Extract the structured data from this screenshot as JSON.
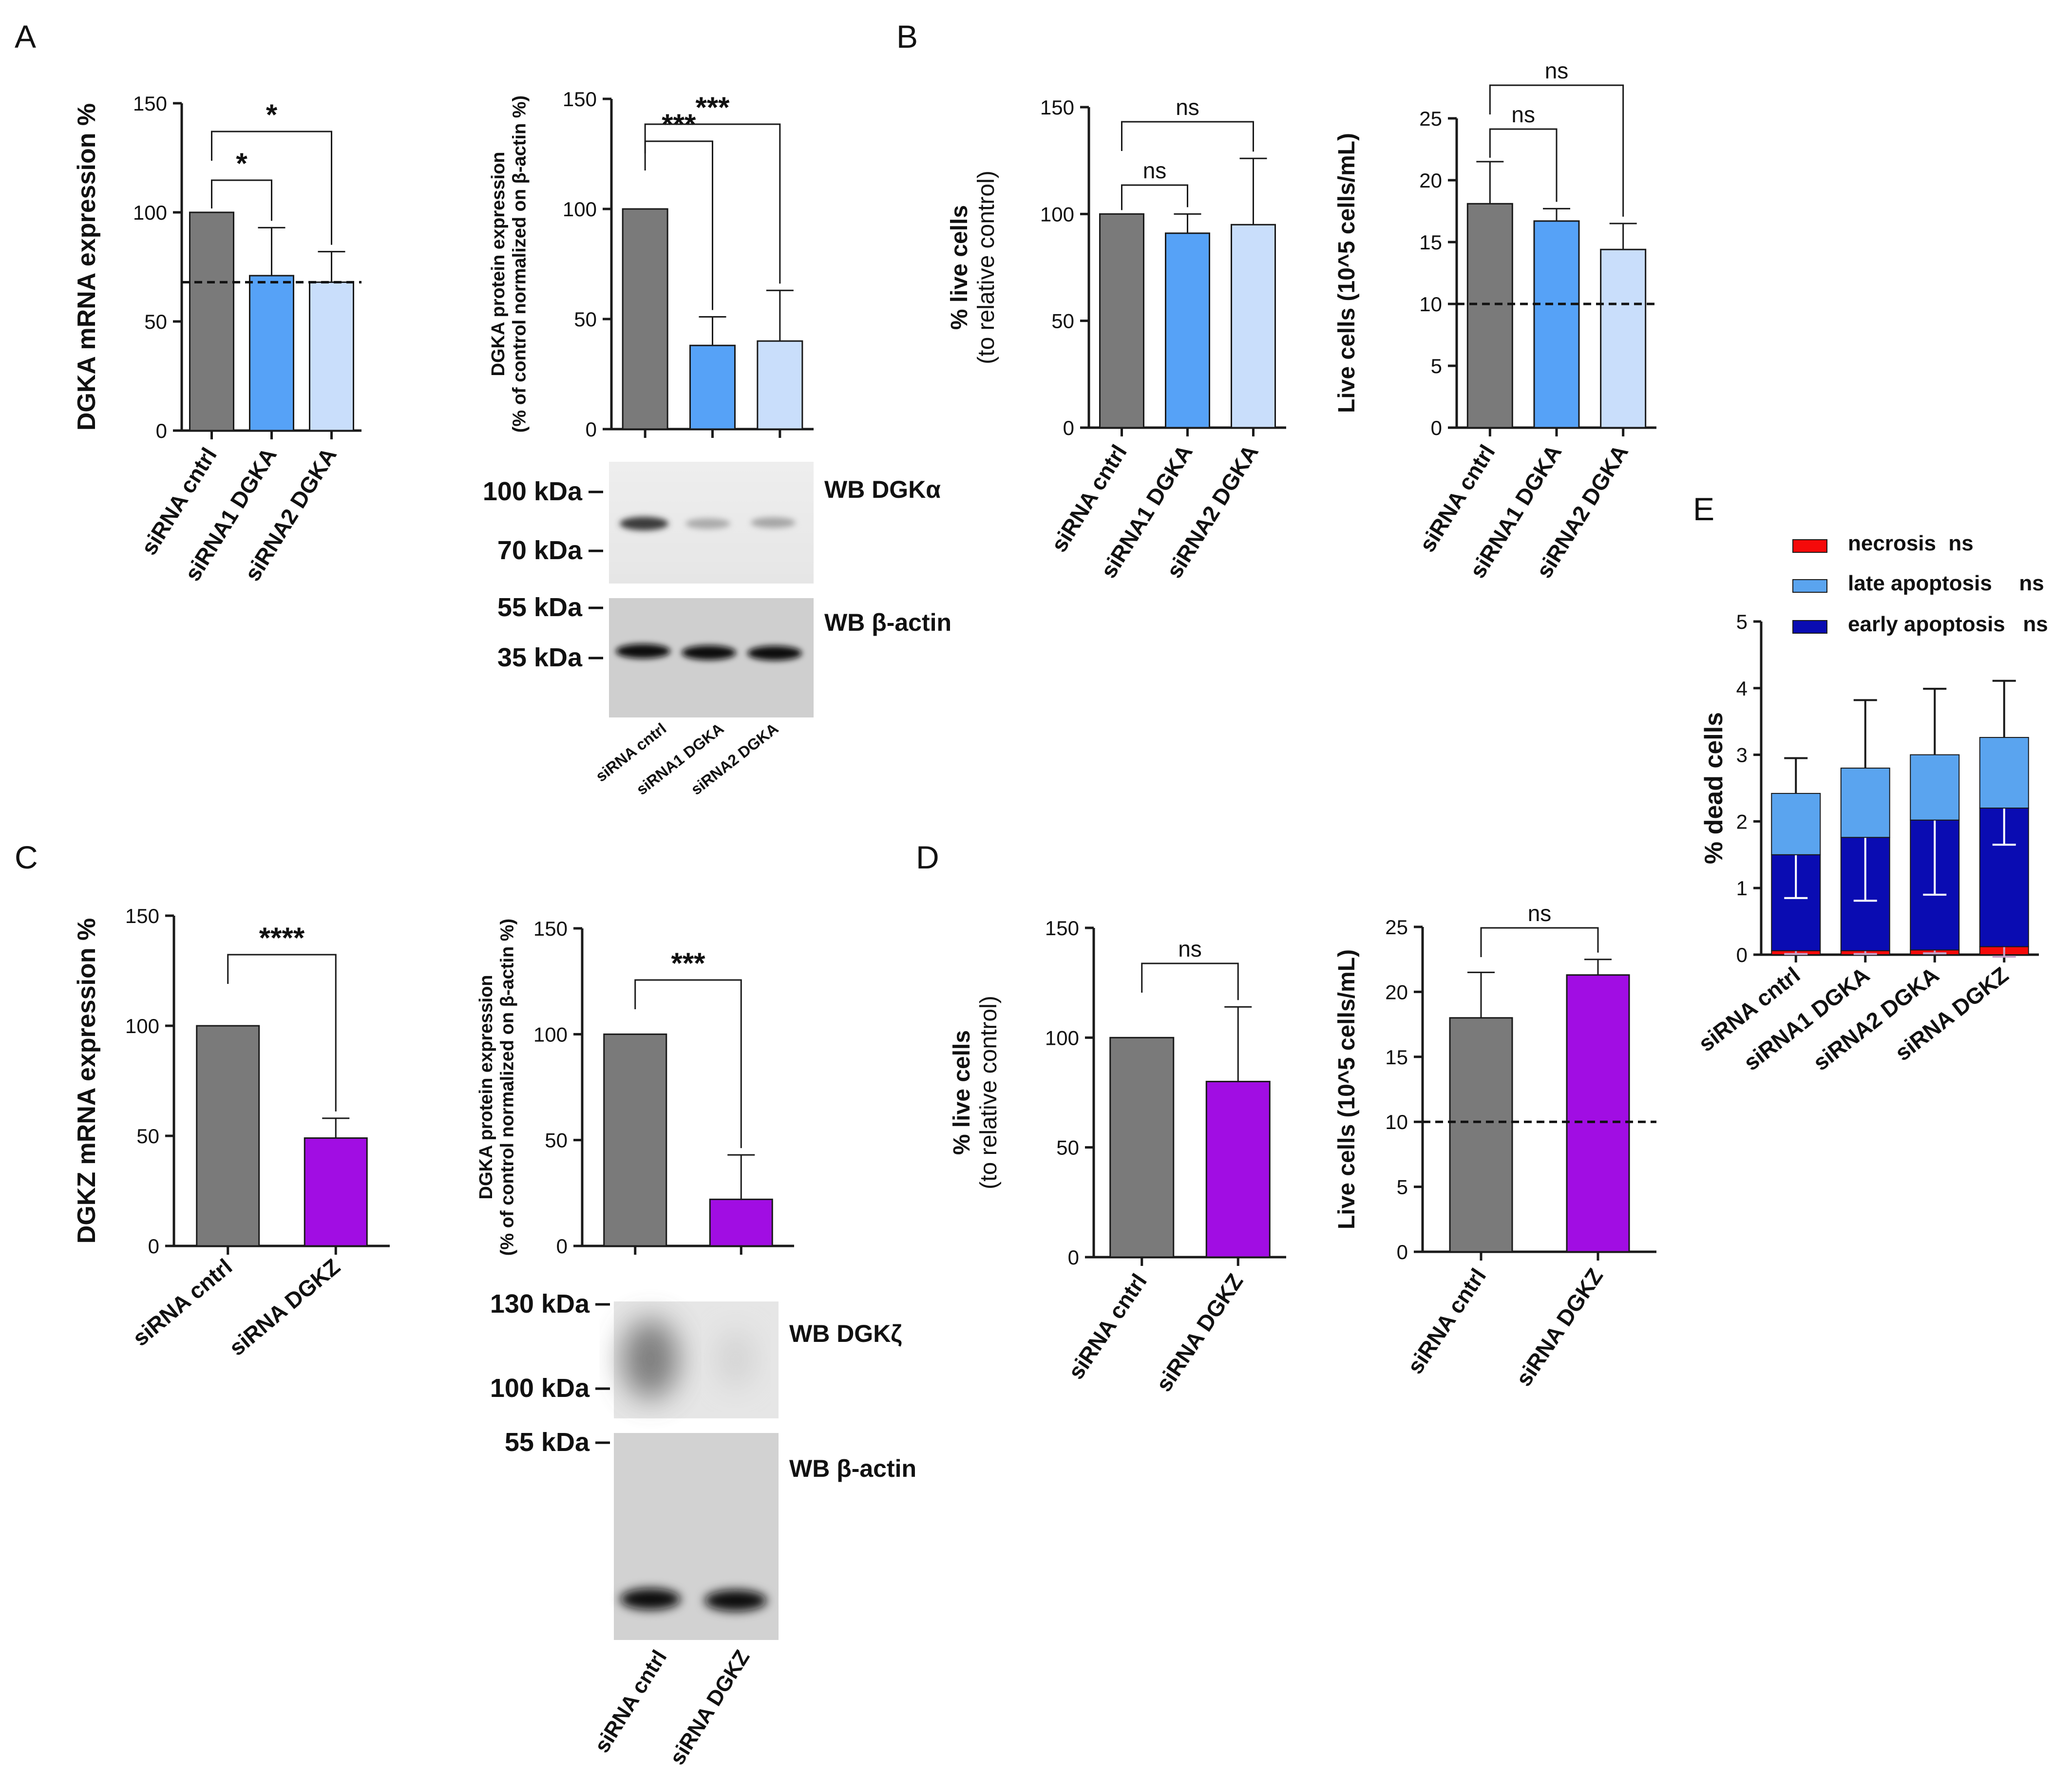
{
  "colors": {
    "gray": "#7a7a7a",
    "blue": "#56a2f7",
    "light_blue": "#c9defb",
    "purple": "#a10de3",
    "navy": "#0a0cb2",
    "sky": "#5aa4ef",
    "red": "#f50a0a",
    "axis": "#1a1a1a",
    "white": "#ffffff"
  },
  "panel_labels": [
    "A",
    "B",
    "C",
    "D",
    "E"
  ],
  "chart_data": [
    {
      "id": "A1",
      "type": "bar",
      "ylabel": "DGKA mRNA expression %",
      "categories": [
        "siRNA cntrl",
        "siRNA1 DGKA",
        "siRNA2 DGKA"
      ],
      "values": [
        100,
        71,
        68
      ],
      "errors": [
        0,
        22,
        14
      ],
      "colors": [
        "#7a7a7a",
        "#56a2f7",
        "#c9defb"
      ],
      "ylim": [
        0,
        150
      ],
      "yticks": [
        0,
        50,
        100,
        150
      ],
      "ref_line": 68,
      "sig": [
        {
          "from": 0,
          "to": 1,
          "label": "*"
        },
        {
          "from": 0,
          "to": 2,
          "label": "*"
        }
      ]
    },
    {
      "id": "A2",
      "type": "bar",
      "ylabel": [
        "DGKA protein expression",
        "(% of control normalized on β-actin %)"
      ],
      "categories": [
        "siRNA cntrl",
        "siRNA1 DGKA",
        "siRNA2 DGKA"
      ],
      "values": [
        100,
        38,
        40
      ],
      "errors": [
        0,
        13,
        23
      ],
      "colors": [
        "#7a7a7a",
        "#56a2f7",
        "#c9defb"
      ],
      "ylim": [
        0,
        150
      ],
      "yticks": [
        0,
        50,
        100,
        150
      ],
      "sig": [
        {
          "from": 0,
          "to": 1,
          "label": "***"
        },
        {
          "from": 0,
          "to": 2,
          "label": "***"
        }
      ]
    },
    {
      "id": "B1",
      "type": "bar",
      "ylabel": [
        "% live cells",
        "(to relative control)"
      ],
      "categories": [
        "siRNA cntrl",
        "siRNA1 DGKA",
        "siRNA2 DGKA"
      ],
      "values": [
        100,
        91,
        95
      ],
      "errors": [
        0,
        9,
        31
      ],
      "colors": [
        "#7a7a7a",
        "#56a2f7",
        "#c9defb"
      ],
      "ylim": [
        0,
        150
      ],
      "yticks": [
        0,
        50,
        100,
        150
      ],
      "sig": [
        {
          "from": 0,
          "to": 1,
          "label": "ns"
        },
        {
          "from": 0,
          "to": 2,
          "label": "ns"
        }
      ]
    },
    {
      "id": "B2",
      "type": "bar",
      "ylabel": "Live cells (10^5 cells/mL)",
      "categories": [
        "siRNA cntrl",
        "siRNA1 DGKA",
        "siRNA2 DGKA"
      ],
      "values": [
        18.1,
        16.7,
        14.4
      ],
      "errors": [
        3.4,
        1.0,
        2.1
      ],
      "colors": [
        "#7a7a7a",
        "#56a2f7",
        "#c9defb"
      ],
      "ylim": [
        0,
        25
      ],
      "yticks": [
        0,
        5,
        10,
        15,
        20,
        25
      ],
      "ref_line": 10,
      "sig": [
        {
          "from": 0,
          "to": 1,
          "label": "ns"
        },
        {
          "from": 0,
          "to": 2,
          "label": "ns"
        }
      ]
    },
    {
      "id": "C1",
      "type": "bar",
      "ylabel": "DGKZ mRNA expression %",
      "categories": [
        "siRNA cntrl",
        "siRNA DGKZ"
      ],
      "values": [
        100,
        49
      ],
      "errors": [
        0,
        9
      ],
      "colors": [
        "#7a7a7a",
        "#a10de3"
      ],
      "ylim": [
        0,
        150
      ],
      "yticks": [
        0,
        50,
        100,
        150
      ],
      "sig": [
        {
          "from": 0,
          "to": 1,
          "label": "****"
        }
      ]
    },
    {
      "id": "C2",
      "type": "bar",
      "ylabel": [
        "DGKA protein expression",
        "(% of control normalized on β-actin %)"
      ],
      "categories": [
        "siRNA cntrl",
        "siRNA DGKZ"
      ],
      "values": [
        100,
        22
      ],
      "errors": [
        0,
        21
      ],
      "colors": [
        "#7a7a7a",
        "#a10de3"
      ],
      "ylim": [
        0,
        150
      ],
      "yticks": [
        0,
        50,
        100,
        150
      ],
      "sig": [
        {
          "from": 0,
          "to": 1,
          "label": "***"
        }
      ]
    },
    {
      "id": "D1",
      "type": "bar",
      "ylabel": [
        "% live cells",
        "(to relative control)"
      ],
      "categories": [
        "siRNA cntrl",
        "siRNA DGKZ"
      ],
      "values": [
        100,
        80
      ],
      "errors": [
        0,
        34
      ],
      "colors": [
        "#7a7a7a",
        "#a10de3"
      ],
      "ylim": [
        0,
        150
      ],
      "yticks": [
        0,
        50,
        100,
        150
      ],
      "sig": [
        {
          "from": 0,
          "to": 1,
          "label": "ns"
        }
      ]
    },
    {
      "id": "D2",
      "type": "bar",
      "ylabel": "Live cells (10^5 cells/mL)",
      "categories": [
        "siRNA cntrl",
        "siRNA DGKZ"
      ],
      "values": [
        18.0,
        21.3
      ],
      "errors": [
        3.5,
        1.2
      ],
      "colors": [
        "#7a7a7a",
        "#a10de3"
      ],
      "ylim": [
        0,
        25
      ],
      "yticks": [
        0,
        5,
        10,
        15,
        20,
        25
      ],
      "ref_line": 10,
      "sig": [
        {
          "from": 0,
          "to": 1,
          "label": "ns"
        }
      ]
    },
    {
      "id": "E",
      "type": "stacked_bar",
      "ylabel": "% dead cells",
      "categories": [
        "siRNA cntrl",
        "siRNA1 DGKA",
        "siRNA2 DGKA",
        "siRNA DGKZ"
      ],
      "ylim": [
        0,
        5
      ],
      "yticks": [
        0,
        1,
        2,
        3,
        4,
        5
      ],
      "series": [
        {
          "name": "necrosis",
          "sig": "ns",
          "color": "#f50a0a",
          "values": [
            0.06,
            0.06,
            0.07,
            0.12
          ],
          "errors": [
            0.05,
            0.05,
            0.05,
            0.15
          ]
        },
        {
          "name": "early apoptosis",
          "sig": "ns",
          "color": "#0a0cb2",
          "values": [
            1.44,
            1.7,
            1.95,
            2.08
          ],
          "errors": [
            0.65,
            0.95,
            1.12,
            0.55
          ]
        },
        {
          "name": "late apoptosis",
          "sig": "ns",
          "color": "#5aa4ef",
          "values": [
            0.92,
            1.04,
            0.98,
            1.06
          ],
          "errors": [
            0.53,
            1.02,
            0.99,
            0.85
          ]
        }
      ],
      "legend_order": [
        "necrosis",
        "late apoptosis",
        "early apoptosis"
      ]
    }
  ],
  "blots": {
    "A": {
      "markers": [
        "100 kDa",
        "70 kDa",
        "55 kDa",
        "35 kDa"
      ],
      "labels": [
        "WB DGKα",
        "WB β-actin"
      ],
      "lanes": [
        "siRNA cntrl",
        "siRNA1 DGKA",
        "siRNA2 DGKA"
      ]
    },
    "C": {
      "markers": [
        "130 kDa",
        "100 kDa",
        "55 kDa"
      ],
      "labels": [
        "WB DGKζ",
        "WB β-actin"
      ],
      "lanes": [
        "siRNA cntrl",
        "siRNA DGKZ"
      ]
    }
  }
}
